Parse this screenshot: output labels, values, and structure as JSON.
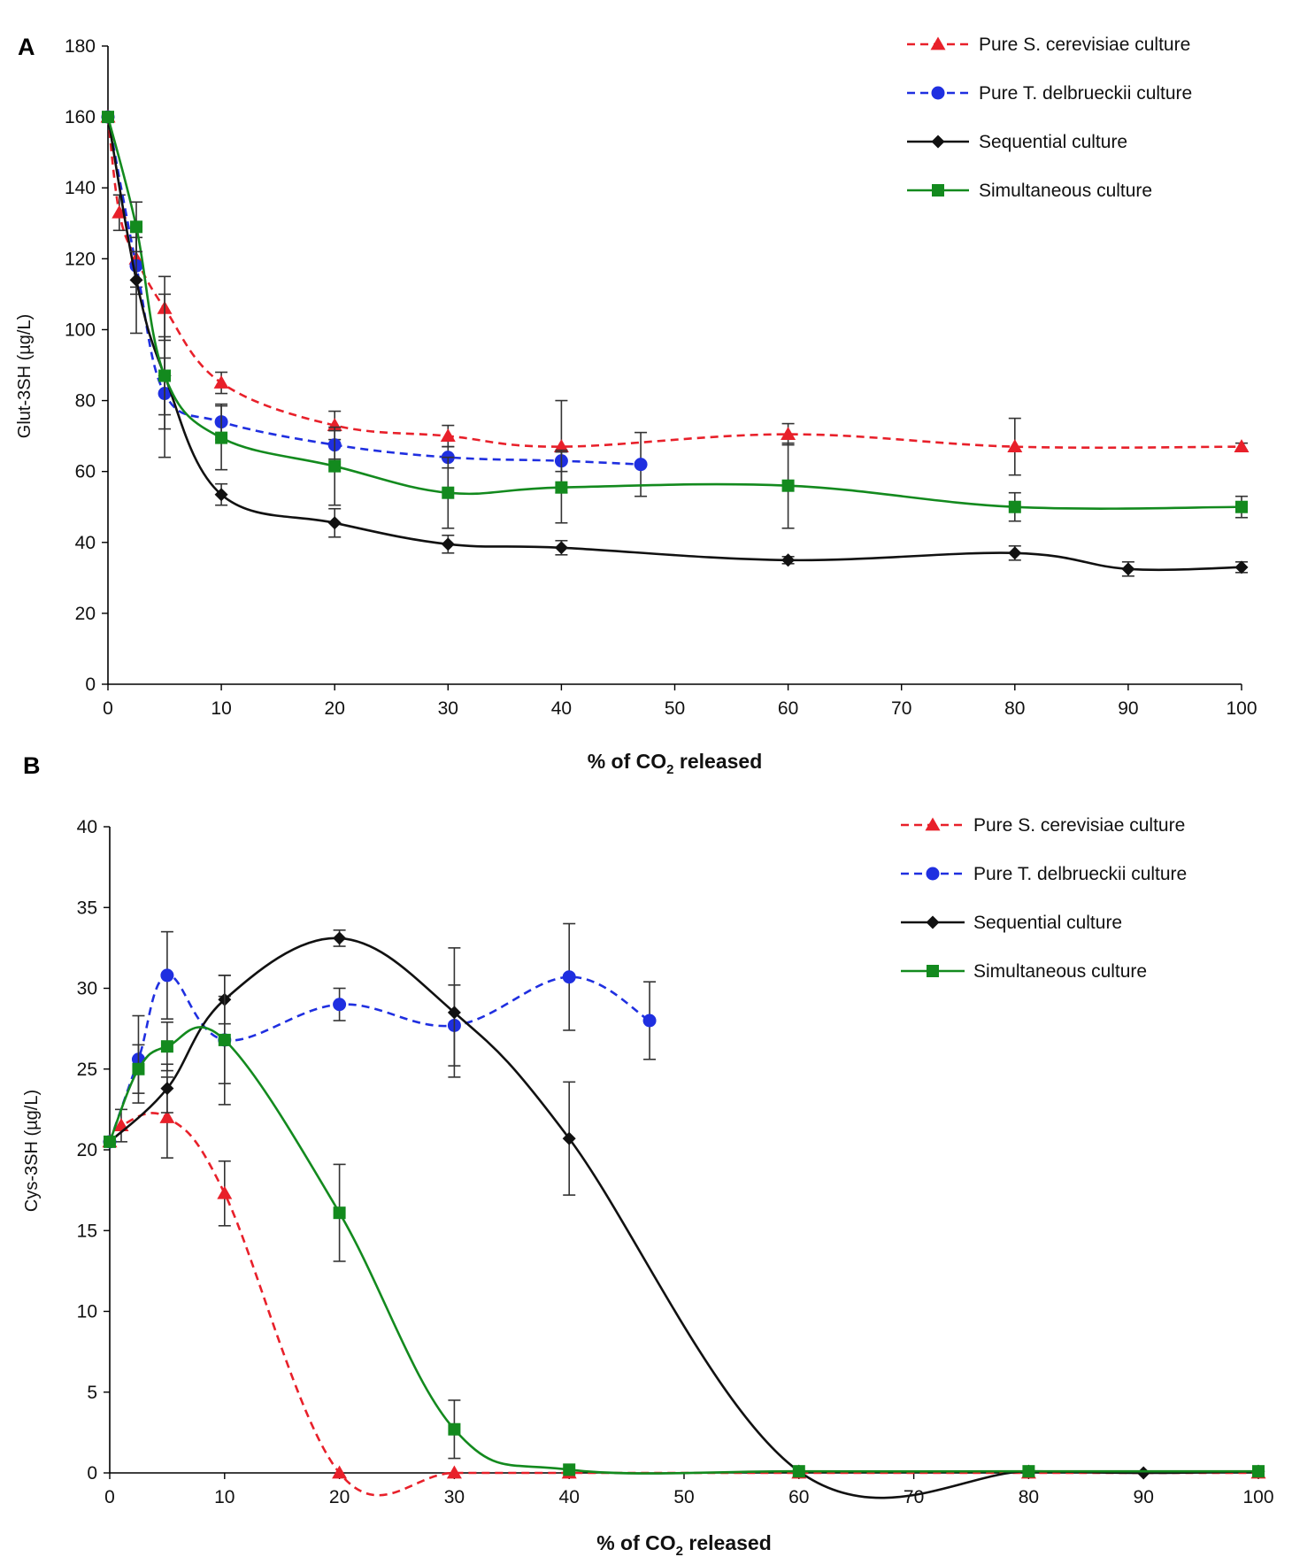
{
  "chart_data": [
    {
      "type": "line",
      "panel_label": "A",
      "xlabel_main": "% of CO",
      "xlabel_sub": "2",
      "xlabel_tail": " released",
      "ylabel": "Glut-3SH (µg/L)",
      "xlim": [
        0,
        100
      ],
      "ylim": [
        0,
        180
      ],
      "xticks": [
        0,
        10,
        20,
        30,
        40,
        50,
        60,
        70,
        80,
        90,
        100
      ],
      "yticks": [
        0,
        20,
        40,
        60,
        80,
        100,
        120,
        140,
        160,
        180
      ],
      "legend_position": "top-right",
      "series": [
        {
          "name": "Pure S. cerevisiae culture",
          "color": "#e8202a",
          "dash": true,
          "marker": "triangle",
          "x": [
            0,
            1,
            2.5,
            5,
            10,
            20,
            30,
            40,
            60,
            80,
            100
          ],
          "y": [
            160,
            133,
            120,
            106,
            85,
            73,
            70,
            67,
            70.5,
            67,
            67
          ],
          "err": [
            0,
            5,
            8,
            9,
            3,
            4,
            3,
            13,
            3,
            8,
            1
          ]
        },
        {
          "name": "Pure T. delbrueckii culture",
          "color": "#1f2fe0",
          "dash": true,
          "marker": "circle",
          "x": [
            0,
            2.5,
            5,
            10,
            20,
            30,
            40,
            47
          ],
          "y": [
            160,
            118,
            82,
            74,
            67.5,
            64,
            63,
            62
          ],
          "err": [
            0,
            8,
            10,
            5,
            4,
            3,
            3,
            9
          ]
        },
        {
          "name": "Sequential culture",
          "color": "#111111",
          "dash": false,
          "marker": "diamond",
          "x": [
            0,
            2.5,
            5,
            10,
            20,
            30,
            40,
            60,
            80,
            90,
            100
          ],
          "y": [
            160,
            114,
            87,
            53.5,
            45.5,
            39.5,
            38.5,
            35,
            37,
            32.5,
            33
          ],
          "err": [
            0,
            15,
            23,
            3,
            4,
            2.5,
            2,
            1,
            2,
            2,
            1.5
          ]
        },
        {
          "name": "Simultaneous culture",
          "color": "#138a1e",
          "dash": false,
          "marker": "square",
          "x": [
            0,
            2.5,
            5,
            10,
            20,
            30,
            40,
            60,
            80,
            100
          ],
          "y": [
            160,
            129,
            87,
            69.5,
            61.5,
            54,
            55.5,
            56,
            50,
            50
          ],
          "err": [
            0,
            7,
            11,
            9,
            11,
            10,
            10,
            12,
            4,
            3
          ]
        }
      ]
    },
    {
      "type": "line",
      "panel_label": "B",
      "xlabel_main": "% of CO",
      "xlabel_sub": "2",
      "xlabel_tail": " released",
      "ylabel": "Cys-3SH (µg/L)",
      "xlim": [
        0,
        100
      ],
      "ylim": [
        0,
        40
      ],
      "xticks": [
        0,
        10,
        20,
        30,
        40,
        50,
        60,
        70,
        80,
        90,
        100
      ],
      "yticks": [
        0,
        5,
        10,
        15,
        20,
        25,
        30,
        35,
        40
      ],
      "legend_position": "top-right",
      "series": [
        {
          "name": "Pure S. cerevisiae culture",
          "color": "#e8202a",
          "dash": true,
          "marker": "triangle",
          "x": [
            0,
            1,
            5,
            10,
            20,
            30,
            40,
            60,
            80,
            100
          ],
          "y": [
            20.5,
            21.5,
            22,
            17.3,
            0,
            0,
            0,
            0,
            0,
            0
          ],
          "err": [
            0,
            1,
            2.5,
            2,
            0,
            0,
            0,
            0,
            0,
            0
          ]
        },
        {
          "name": "Pure T. delbrueckii culture",
          "color": "#1f2fe0",
          "dash": true,
          "marker": "circle",
          "x": [
            0,
            2.5,
            5,
            10,
            20,
            30,
            40,
            47
          ],
          "y": [
            20.5,
            25.6,
            30.8,
            26.8,
            29,
            27.7,
            30.7,
            28
          ],
          "err": [
            0,
            2.7,
            2.7,
            2.7,
            1,
            2.5,
            3.3,
            2.4
          ]
        },
        {
          "name": "Sequential culture",
          "color": "#111111",
          "dash": false,
          "marker": "diamond",
          "x": [
            0,
            5,
            10,
            20,
            30,
            40,
            60,
            80,
            90,
            100
          ],
          "y": [
            20.5,
            23.8,
            29.3,
            33.1,
            28.5,
            20.7,
            0.1,
            0.1,
            0,
            0.1
          ],
          "err": [
            0,
            1.5,
            1.5,
            0.5,
            4,
            3.5,
            0,
            0,
            0,
            0
          ]
        },
        {
          "name": "Simultaneous culture",
          "color": "#138a1e",
          "dash": false,
          "marker": "square",
          "x": [
            0,
            2.5,
            5,
            10,
            20,
            30,
            40,
            60,
            80,
            100
          ],
          "y": [
            20.5,
            25,
            26.4,
            26.8,
            16.1,
            2.7,
            0.2,
            0.1,
            0.1,
            0.1
          ],
          "err": [
            0,
            1.5,
            1.5,
            4,
            3,
            1.8,
            0,
            0,
            0,
            0
          ]
        }
      ]
    }
  ]
}
